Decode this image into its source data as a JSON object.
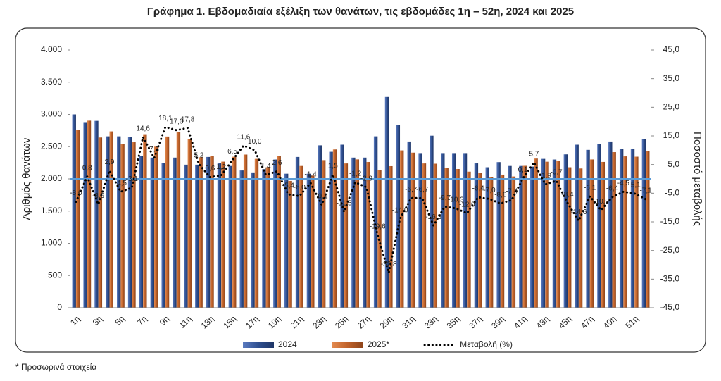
{
  "chart_data": {
    "type": "bar",
    "title": "Γράφημα 1.  Εβδομαδιαία εξέλιξη των θανάτων, τις εβδομάδες 1η – 52η, 2024 και 2025",
    "y_label": "Αριθμός θανάτων",
    "y2_label": "Ποσοστό μεταβολής",
    "footnote": "* Προσωρινά στοιχεία",
    "categories": [
      "1η",
      null,
      "3η",
      null,
      "5η",
      null,
      "7η",
      null,
      "9η",
      null,
      "11η",
      null,
      "13η",
      null,
      "15η",
      null,
      "17η",
      null,
      "19η",
      null,
      "21η",
      null,
      "23η",
      null,
      "25η",
      null,
      "27η",
      null,
      "29η",
      null,
      "31η",
      null,
      "33η",
      null,
      "35η",
      null,
      "37η",
      null,
      "39η",
      null,
      "41η",
      null,
      "43η",
      null,
      "45η",
      null,
      "47η",
      null,
      "49η",
      null,
      "51η",
      null
    ],
    "series": [
      {
        "name": "2024",
        "type": "bar",
        "color": "#2f4f8f",
        "values": [
          3000,
          2880,
          2900,
          2660,
          2660,
          2650,
          2350,
          2330,
          2250,
          2330,
          2220,
          2220,
          2340,
          2240,
          2200,
          2130,
          2100,
          2150,
          2300,
          2080,
          2340,
          2080,
          2520,
          2420,
          2530,
          2330,
          2330,
          2660,
          3270,
          2840,
          2580,
          2400,
          2670,
          2400,
          2400,
          2400,
          2240,
          2180,
          2260,
          2200,
          2200,
          2190,
          2310,
          2300,
          2380,
          2530,
          2450,
          2540,
          2580,
          2460,
          2470,
          2620
        ]
      },
      {
        "name": "2025*",
        "type": "bar",
        "color": "#c0622a",
        "values": [
          2760,
          2903,
          2642,
          2737,
          2540,
          2568,
          2693,
          2500,
          2657,
          2726,
          2615,
          2335,
          2354,
          2267,
          2343,
          2377,
          2310,
          2180,
          2360,
          1968,
          2200,
          2051,
          2291,
          2456,
          2239,
          2302,
          2262,
          2139,
          2197,
          2442,
          2407,
          2239,
          2235,
          2167,
          2153,
          2112,
          2097,
          2027,
          2066,
          2037,
          2202,
          2315,
          2266,
          2284,
          2180,
          2161,
          2301,
          2263,
          2415,
          2349,
          2344,
          2434
        ]
      },
      {
        "name": "Μεταβολή (%)",
        "type": "line",
        "axis": "y2",
        "color": "#000000",
        "values": [
          -8.0,
          0.8,
          -8.9,
          2.9,
          -4.5,
          -3.1,
          14.6,
          7.3,
          18.1,
          17.0,
          17.8,
          5.2,
          0.6,
          1.2,
          6.5,
          11.6,
          10.0,
          1.4,
          2.6,
          -5.4,
          -6.0,
          -1.4,
          -9.1,
          1.5,
          -11.5,
          -1.2,
          -2.9,
          -19.6,
          -32.8,
          -14.0,
          -6.7,
          -6.7,
          -16.3,
          -9.7,
          -10.3,
          -12.0,
          -6.4,
          -7.0,
          -8.6,
          -7.4,
          0.1,
          5.7,
          -1.9,
          -0.7,
          -8.4,
          -14.6,
          -6.1,
          -10.9,
          -6.4,
          -4.5,
          -5.1,
          -7.1
        ],
        "value_labels": [
          "-8,0",
          "0,8",
          "-8,9",
          "2,9",
          "-4,5",
          "-3,1",
          "14,6",
          "7,3",
          "18,1",
          "17,0",
          "17,8",
          "5,2",
          "0,6",
          "1,2",
          "6,5",
          "11,6",
          "10,0",
          "1,4",
          "2,6",
          "-5,4",
          "-6,0",
          "-1,4",
          "-9,1",
          "1,5",
          "-11,5",
          "-1,2",
          "-2,9",
          "-19,6",
          "-32,8",
          "-14,0",
          "-6,7",
          "-6,7",
          "-16,3",
          "-9,7",
          "-10,3",
          "-12,0",
          "-6,4",
          "-7,0",
          "-8,6",
          "-7,4",
          "0,1",
          "5,7",
          "-1,9",
          "-0,7",
          "-8,4",
          "-14,6",
          "-6,1",
          "-10,9",
          "-6,4",
          "-4,5",
          "-5,1",
          "-7,1"
        ]
      }
    ],
    "ylim": [
      0,
      4000
    ],
    "yticks": [
      {
        "value": 0,
        "label": "0"
      },
      {
        "value": 500,
        "label": "500"
      },
      {
        "value": 1000,
        "label": "1.000"
      },
      {
        "value": 1500,
        "label": "1.500"
      },
      {
        "value": 2000,
        "label": "2.000"
      },
      {
        "value": 2500,
        "label": "2.500"
      },
      {
        "value": 3000,
        "label": "3.000"
      },
      {
        "value": 3500,
        "label": "3.500"
      },
      {
        "value": 4000,
        "label": "4.000"
      }
    ],
    "y2lim": [
      -45,
      45
    ],
    "y2ticks": [
      {
        "value": -45,
        "label": "-45,0"
      },
      {
        "value": -35,
        "label": "-35,0"
      },
      {
        "value": -25,
        "label": "-25,0"
      },
      {
        "value": -15,
        "label": "-15,0"
      },
      {
        "value": -5,
        "label": "-5,0"
      },
      {
        "value": 5,
        "label": "5,0"
      },
      {
        "value": 15,
        "label": "15,0"
      },
      {
        "value": 25,
        "label": "25,0"
      },
      {
        "value": 35,
        "label": "35,0"
      },
      {
        "value": 45,
        "label": "45,0"
      }
    ],
    "legend": "bottom",
    "grid": false
  }
}
